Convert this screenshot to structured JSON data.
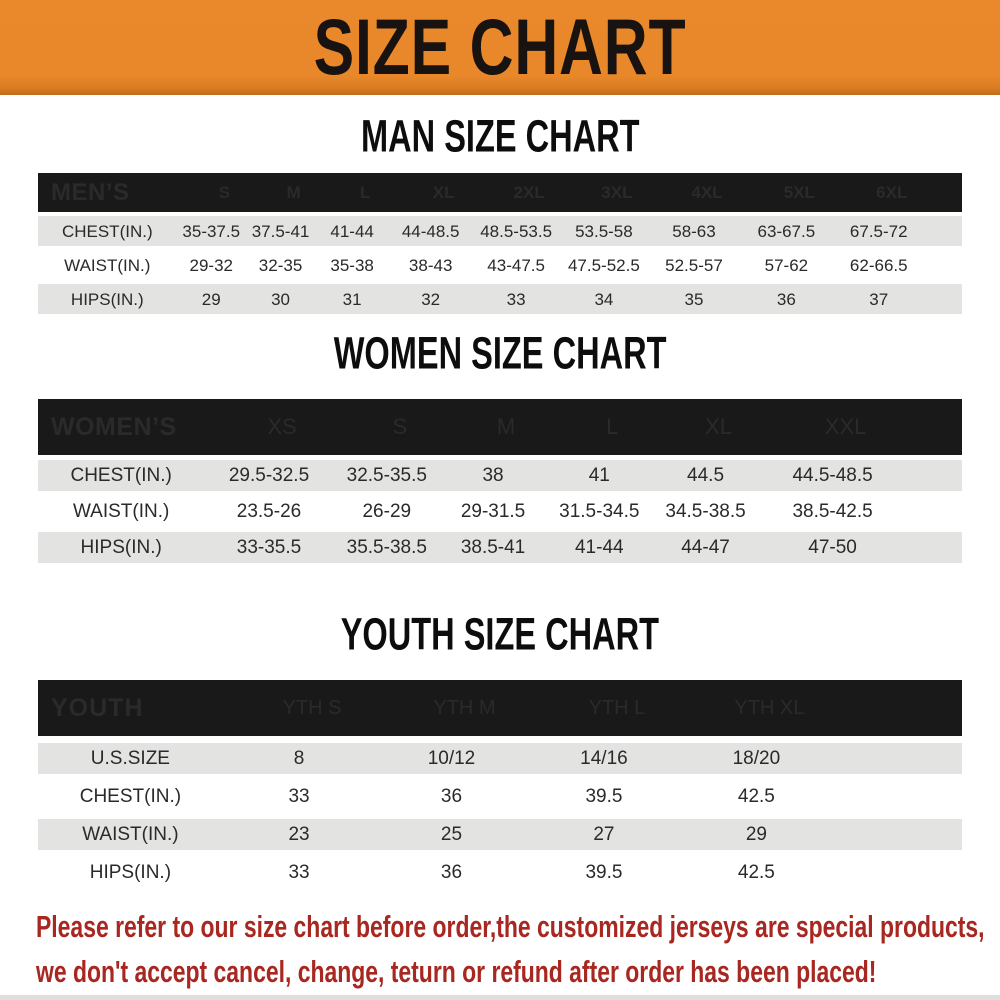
{
  "banner": {
    "title": "SIZE CHART",
    "bg_color": "#E8882A",
    "text_color": "#181310"
  },
  "colors": {
    "header_bar": "#191919",
    "row_alt": "#E3E3E1",
    "footer_text": "#A82720"
  },
  "men": {
    "heading": "MAN SIZE CHART",
    "header": [
      "MEN’S",
      "S",
      "M",
      "L",
      "XL",
      "2XL",
      "3XL",
      "4XL",
      "5XL",
      "6XL"
    ],
    "rows": [
      {
        "label": "CHEST(IN.)",
        "values": [
          "35-37.5",
          "37.5-41",
          "41-44",
          "44-48.5",
          "48.5-53.5",
          "53.5-58",
          "58-63",
          "63-67.5",
          "67.5-72"
        ]
      },
      {
        "label": "WAIST(IN.)",
        "values": [
          "29-32",
          "32-35",
          "35-38",
          "38-43",
          "43-47.5",
          "47.5-52.5",
          "52.5-57",
          "57-62",
          "62-66.5"
        ]
      },
      {
        "label": "HIPS(IN.)",
        "values": [
          "29",
          "30",
          "31",
          "32",
          "33",
          "34",
          "35",
          "36",
          "37"
        ]
      }
    ]
  },
  "women": {
    "heading": "WOMEN SIZE CHART",
    "header": [
      "WOMEN’S",
      "XS",
      "S",
      "M",
      "L",
      "XL",
      "XXL"
    ],
    "rows": [
      {
        "label": "CHEST(IN.)",
        "values": [
          "29.5-32.5",
          "32.5-35.5",
          "38",
          "41",
          "44.5",
          "44.5-48.5"
        ]
      },
      {
        "label": "WAIST(IN.)",
        "values": [
          "23.5-26",
          "26-29",
          "29-31.5",
          "31.5-34.5",
          "34.5-38.5",
          "38.5-42.5"
        ]
      },
      {
        "label": "HIPS(IN.)",
        "values": [
          "33-35.5",
          "35.5-38.5",
          "38.5-41",
          "41-44",
          "44-47",
          "47-50"
        ]
      }
    ]
  },
  "youth": {
    "heading": "YOUTH SIZE CHART",
    "header": [
      "YOUTH",
      "YTH S",
      "YTH M",
      "YTH L",
      "YTH XL"
    ],
    "rows": [
      {
        "label": "U.S.SIZE",
        "values": [
          "8",
          "10/12",
          "14/16",
          "18/20"
        ]
      },
      {
        "label": "CHEST(IN.)",
        "values": [
          "33",
          "36",
          "39.5",
          "42.5"
        ]
      },
      {
        "label": "WAIST(IN.)",
        "values": [
          "23",
          "25",
          "27",
          "29"
        ]
      },
      {
        "label": "HIPS(IN.)",
        "values": [
          "33",
          "36",
          "39.5",
          "42.5"
        ]
      }
    ]
  },
  "footer": {
    "line1": "Please refer to our size chart before order,the customized jerseys are special products,",
    "line2": "we don't accept cancel, change, teturn or refund after order has been placed!"
  }
}
